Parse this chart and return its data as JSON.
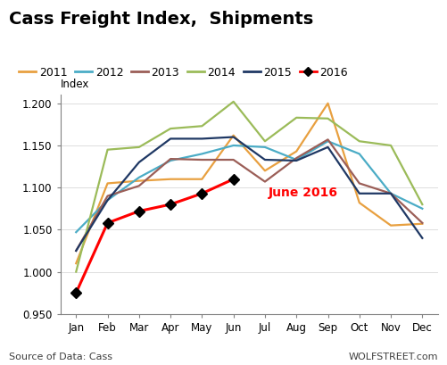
{
  "title": "Cass Freight Index,  Shipments",
  "ylabel": "Index",
  "source_text": "Source of Data: Cass",
  "watermark": "WOLFSTREET.com",
  "annotation": "June 2016",
  "ylim": [
    0.95,
    1.21
  ],
  "yticks": [
    0.95,
    1.0,
    1.05,
    1.1,
    1.15,
    1.2
  ],
  "months": [
    "Jan",
    "Feb",
    "Mar",
    "Apr",
    "May",
    "Jun",
    "Jul",
    "Aug",
    "Sep",
    "Oct",
    "Nov",
    "Dec"
  ],
  "series": {
    "2011": {
      "color": "#E8A040",
      "values": [
        1.01,
        1.105,
        1.108,
        1.11,
        1.11,
        1.162,
        1.12,
        1.143,
        1.2,
        1.082,
        1.055,
        1.057
      ]
    },
    "2012": {
      "color": "#4BACC6",
      "values": [
        1.047,
        1.085,
        1.112,
        1.132,
        1.14,
        1.15,
        1.148,
        1.133,
        1.155,
        1.14,
        1.093,
        1.075
      ]
    },
    "2013": {
      "color": "#9B5E57",
      "values": [
        1.025,
        1.09,
        1.102,
        1.134,
        1.133,
        1.133,
        1.107,
        1.135,
        1.157,
        1.105,
        1.093,
        1.058
      ]
    },
    "2014": {
      "color": "#9BBB59",
      "values": [
        1.0,
        1.145,
        1.148,
        1.17,
        1.173,
        1.202,
        1.155,
        1.183,
        1.182,
        1.155,
        1.15,
        1.08
      ]
    },
    "2015": {
      "color": "#1F3864",
      "values": [
        1.025,
        1.085,
        1.13,
        1.158,
        1.158,
        1.16,
        1.133,
        1.132,
        1.148,
        1.093,
        1.093,
        1.04
      ]
    },
    "2016": {
      "color": "#FF0000",
      "marker": "D",
      "values": [
        0.975,
        1.058,
        1.072,
        1.08,
        1.093,
        1.11,
        null,
        null,
        null,
        null,
        null,
        null
      ]
    }
  },
  "legend_order": [
    "2011",
    "2012",
    "2013",
    "2014",
    "2015",
    "2016"
  ],
  "background_color": "#FFFFFF",
  "annotation_color": "#FF0000",
  "annotation_fontsize": 10,
  "title_fontsize": 14,
  "legend_fontsize": 9,
  "tick_fontsize": 8.5,
  "source_fontsize": 8
}
